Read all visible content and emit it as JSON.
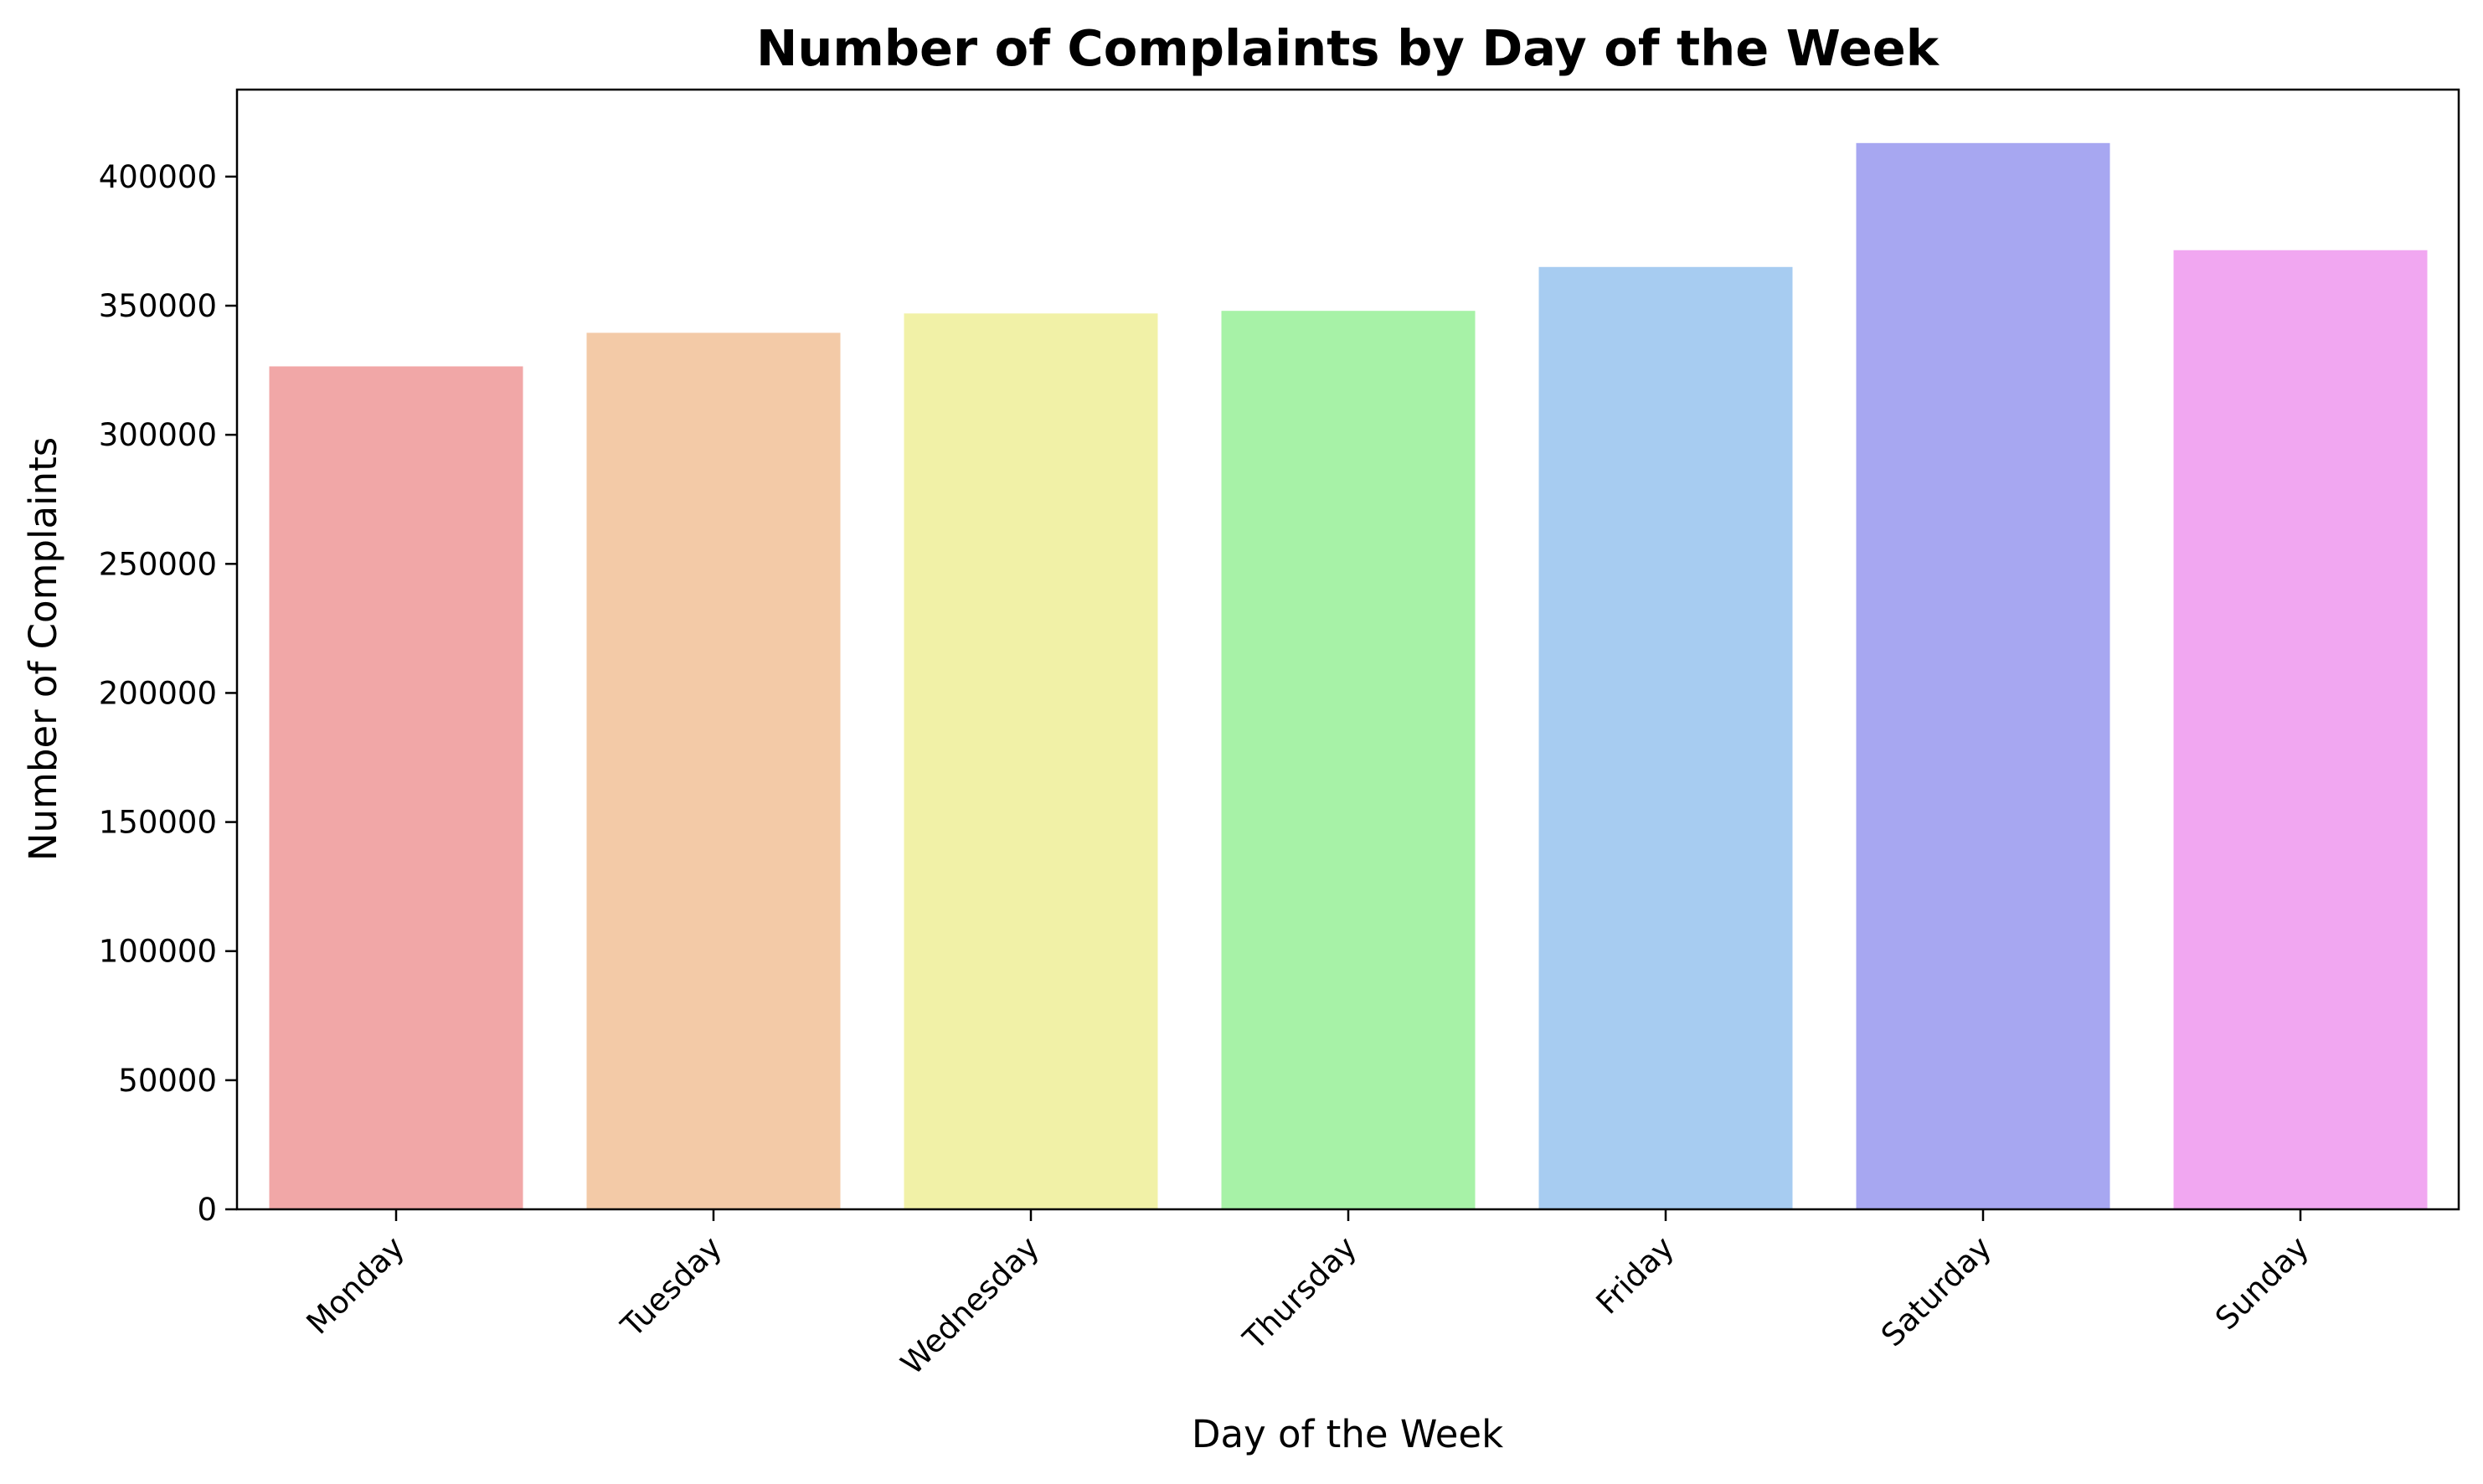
{
  "chart_data": {
    "type": "bar",
    "title": "Number of Complaints by Day of the Week",
    "xlabel": "Day of the Week",
    "ylabel": "Number of Complaints",
    "categories": [
      "Monday",
      "Tuesday",
      "Wednesday",
      "Thursday",
      "Friday",
      "Saturday",
      "Sunday"
    ],
    "values": [
      326500,
      339500,
      347000,
      348000,
      365000,
      413000,
      371500
    ],
    "colors": [
      "#f1a7a7",
      "#f3caa7",
      "#f1f1a7",
      "#a7f2a7",
      "#a7ccf1",
      "#a7a7f1",
      "#f1a7f1"
    ],
    "ylim": [
      0,
      433700
    ],
    "yticks": [
      0,
      50000,
      100000,
      150000,
      200000,
      250000,
      300000,
      350000,
      400000
    ],
    "grid": false,
    "legend": "none"
  }
}
